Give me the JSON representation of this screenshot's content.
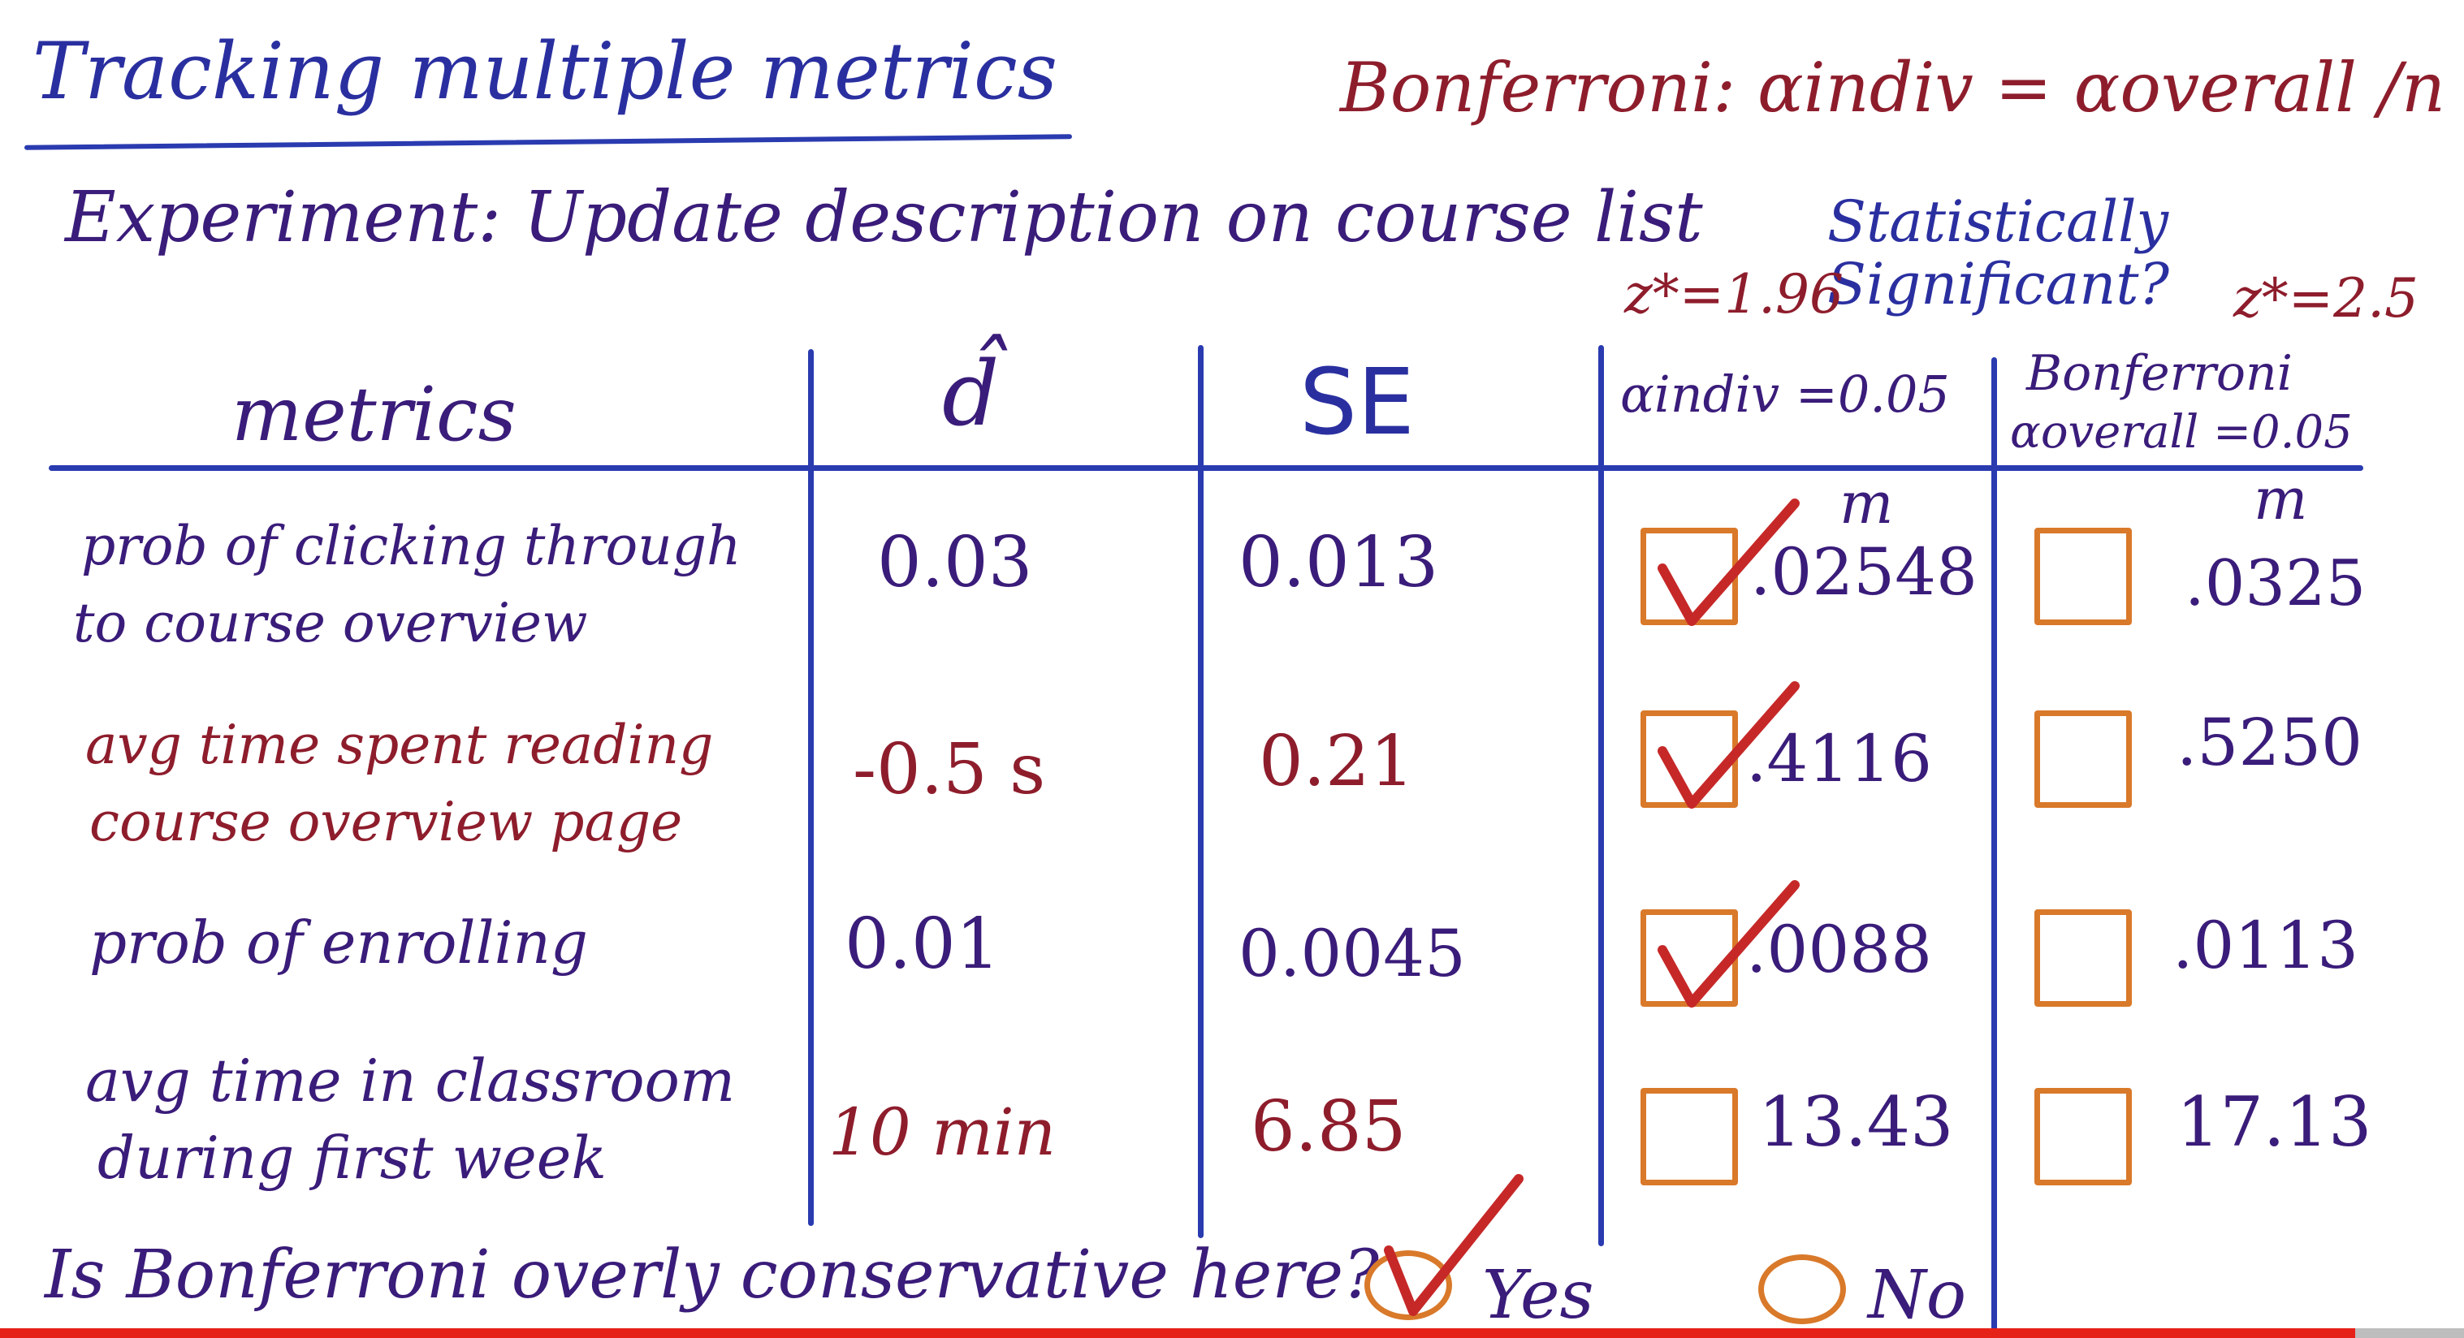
{
  "header": {
    "title": "Tracking multiple metrics",
    "bonferroni_formula": "Bonferroni: αindiv = αoverall /n",
    "experiment": "Experiment: Update description on course list",
    "stat_sig": "Statistically Significant?",
    "z_left": "z*=1.96",
    "z_right": "z*=2.5"
  },
  "table": {
    "headers": {
      "metrics": "metrics",
      "dhat": "d̂",
      "se": "SE",
      "indiv": "αindiv =0.05",
      "bonf_line1": "Bonferroni",
      "bonf_line2": "αoverall =0.05"
    },
    "m_label": "m",
    "rows": [
      {
        "metric_line1": "prob of clicking through",
        "metric_line2": "to course overview",
        "dhat": "0.03",
        "se": "0.013",
        "indiv_checked": true,
        "indiv_m": ".02548",
        "bonf_checked": false,
        "bonf_m": ".0325"
      },
      {
        "metric_line1": "avg time spent reading",
        "metric_line2": "course overview page",
        "dhat": "-0.5 s",
        "se": "0.21",
        "indiv_checked": true,
        "indiv_m": ".4116",
        "bonf_checked": false,
        "bonf_m": ".5250"
      },
      {
        "metric_line1": "prob of enrolling",
        "metric_line2": "",
        "dhat": "0.01",
        "se": "0.0045",
        "indiv_checked": true,
        "indiv_m": ".0088",
        "bonf_checked": false,
        "bonf_m": ".0113"
      },
      {
        "metric_line1": "avg time in classroom",
        "metric_line2": "during first week",
        "dhat": "10 min",
        "se": "6.85",
        "indiv_checked": false,
        "indiv_m": "13.43",
        "bonf_checked": false,
        "bonf_m": "17.13"
      }
    ]
  },
  "question": {
    "text": "Is Bonferroni overly conservative here?",
    "options": [
      {
        "label": "Yes",
        "selected": true
      },
      {
        "label": "No",
        "selected": false
      }
    ]
  },
  "colors": {
    "blue_ink": "#2a2fa0",
    "red_ink": "#8e1d2c",
    "purple_ink": "#3a1c7a",
    "orange_box": "#d9792a",
    "check_red": "#c62828",
    "line_blue": "#2a3bb0",
    "progress_red": "#e62117"
  },
  "icons": {
    "check": "check-mark-icon",
    "radio": "radio-circle-icon"
  }
}
